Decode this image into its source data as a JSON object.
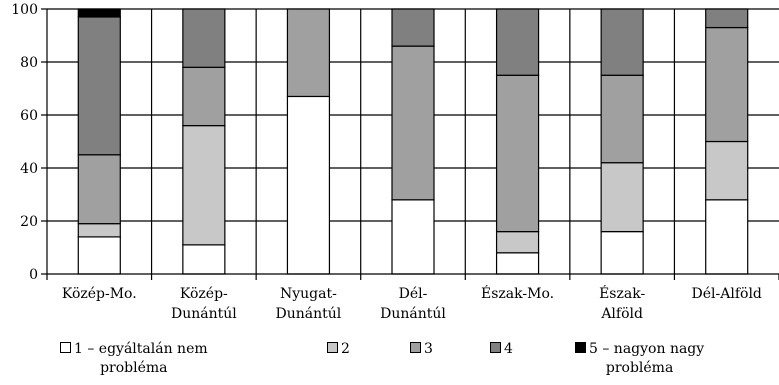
{
  "chart_data": {
    "type": "bar",
    "stacked": true,
    "title": "",
    "xlabel": "",
    "ylabel": "",
    "ylim": [
      0,
      100
    ],
    "yticks": [
      0,
      20,
      40,
      60,
      80,
      100
    ],
    "grid": true,
    "legend_position": "bottom",
    "categories": [
      [
        "Közép-Mo."
      ],
      [
        "Közép-",
        "Dunántúl"
      ],
      [
        "Nyugat-",
        "Dunántúl"
      ],
      [
        "Dél-",
        "Dunántúl"
      ],
      [
        "Észak-Mo."
      ],
      [
        "Észak-",
        "Alföld"
      ],
      [
        "Dél-Alföld"
      ]
    ],
    "series": [
      {
        "name_lines": [
          "1 – egyáltalán nem",
          "probléma"
        ],
        "color": "#ffffff",
        "values": [
          14,
          11,
          67,
          28,
          8,
          16,
          28
        ]
      },
      {
        "name": "2",
        "color": "#c8c8c8",
        "values": [
          5,
          45,
          0,
          0,
          8,
          26,
          22
        ]
      },
      {
        "name": "3",
        "color": "#a0a0a0",
        "values": [
          26,
          22,
          33,
          58,
          59,
          33,
          43
        ]
      },
      {
        "name": "4",
        "color": "#808080",
        "values": [
          52,
          22,
          0,
          14,
          25,
          25,
          7
        ]
      },
      {
        "name_lines": [
          "5 – nagyon nagy",
          "probléma"
        ],
        "color": "#000000",
        "values": [
          3,
          0,
          0,
          0,
          0,
          0,
          0
        ]
      }
    ]
  }
}
